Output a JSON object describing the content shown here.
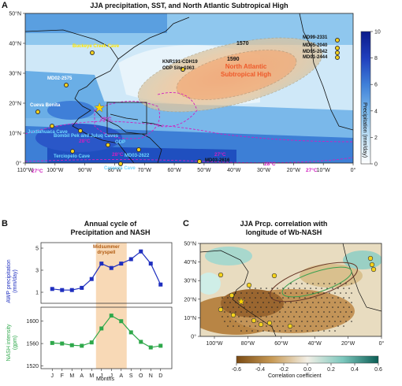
{
  "panel_a": {
    "letter": "A",
    "title": "JJA precipitation, SST, and North Atlantic Subtropical High",
    "colorbar_label": "Precipitation (mm/day)",
    "colorbar_ticks": [
      "10",
      "8",
      "6",
      "4",
      "2",
      "0"
    ],
    "lat_ticks": [
      "50°N",
      "40°N",
      "30°N",
      "20°N",
      "10°N",
      "0°"
    ],
    "lon_ticks": [
      "110°W",
      "100°W",
      "90°W",
      "80°W",
      "70°W",
      "60°W",
      "50°W",
      "40°W",
      "30°W",
      "20°W",
      "10°W",
      "0°"
    ],
    "nash_label_line1": "North Atlantic",
    "nash_label_line2": "Subtropical High",
    "contour_1570": "1570",
    "contour_1590": "1590",
    "sst_labels": [
      "29°C",
      "28°C",
      "27°C",
      "28°C",
      "27°C",
      "27°C",
      "28°C"
    ],
    "sites": [
      {
        "name": "Buckeye Creek Cave",
        "color": "#ffe600"
      },
      {
        "name": "KNR191-CDH19",
        "color": "#111111"
      },
      {
        "name": "ODP Site 1063",
        "color": "#111111"
      },
      {
        "name": "MD02-2575",
        "color": "#ffffff"
      },
      {
        "name": "Cueva Bonita",
        "color": "#ffffff"
      },
      {
        "name": "Juxtlahuaca Cave",
        "color": "#6fd8ff"
      },
      {
        "name": "Bombil Pek and Juluq Caves",
        "color": "#6fd8ff"
      },
      {
        "name": "ODP",
        "color": "#6fd8ff"
      },
      {
        "name": "Terciopelo Cave",
        "color": "#6fd8ff"
      },
      {
        "name": "Caracos Cave",
        "color": "#6fd8ff"
      },
      {
        "name": "MD03-2622",
        "color": "#6fd8ff"
      },
      {
        "name": "MD03-2616",
        "color": "#111111"
      },
      {
        "name": "MD99-2331",
        "color": "#111111"
      },
      {
        "name": "MD95-2040",
        "color": "#111111"
      },
      {
        "name": "MD95-2042",
        "color": "#111111"
      },
      {
        "name": "MD01-2444",
        "color": "#111111"
      }
    ]
  },
  "panel_b": {
    "letter": "B",
    "title_line1": "Annual cycle of",
    "title_line2": "Precipitation and NASH",
    "ylabel_top_1": "AWP precipitation",
    "ylabel_top_2": "(mm/day)",
    "ylabel_bottom_1": "NASH intensity",
    "ylabel_bottom_2": "(gpm)",
    "xlabel": "Months",
    "dryspell_line1": "Midsummer",
    "dryspell_line2": "dryspell"
  },
  "panel_c": {
    "letter": "C",
    "title_line1": "JJA Prcp. correlation with",
    "title_line2": "longitude of Wb-NASH",
    "lat_ticks": [
      "50°N",
      "40°N",
      "30°N",
      "20°N",
      "10°N",
      "0°"
    ],
    "lon_ticks": [
      "100°W",
      "80°W",
      "60°W",
      "40°W",
      "20°W",
      "0°"
    ],
    "colorbar_ticks": [
      "-0.6",
      "-0.4",
      "-0.2",
      "0.0",
      "0.2",
      "0.4",
      "0.6"
    ],
    "colorbar_label": "Correlation coefficient"
  },
  "chart_data": [
    {
      "type": "line",
      "title": "AWP precipitation",
      "categories": [
        "J",
        "F",
        "M",
        "A",
        "M",
        "J",
        "J",
        "A",
        "S",
        "O",
        "N",
        "D"
      ],
      "series": [
        {
          "name": "AWP precipitation (mm/day)",
          "color": "#1f2fbf",
          "values": [
            1.3,
            1.2,
            1.2,
            1.4,
            2.2,
            3.6,
            3.2,
            3.6,
            4.0,
            4.7,
            3.6,
            1.7
          ]
        }
      ],
      "ylim": [
        0,
        5.5
      ],
      "yticks": [
        1,
        3,
        5
      ]
    },
    {
      "type": "line",
      "title": "NASH intensity",
      "categories": [
        "J",
        "F",
        "M",
        "A",
        "M",
        "J",
        "J",
        "A",
        "S",
        "O",
        "N",
        "D"
      ],
      "series": [
        {
          "name": "NASH intensity (gpm)",
          "color": "#2ea84a",
          "values": [
            1561,
            1560,
            1557,
            1556,
            1562,
            1587,
            1610,
            1600,
            1580,
            1563,
            1553,
            1556
          ]
        }
      ],
      "ylim": [
        1515,
        1625
      ],
      "yticks": [
        1520,
        1560,
        1600
      ]
    }
  ]
}
